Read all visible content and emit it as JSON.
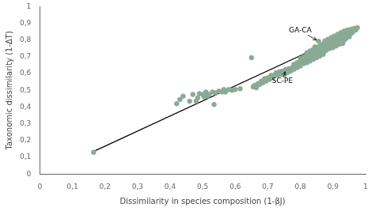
{
  "chart_data": {
    "type": "scatter",
    "xlabel": "Dissimilarity in species composition (1-βJ)",
    "ylabel": "Taxonomic dissimilarity (1-ΔT)",
    "xlim": [
      0,
      1.0
    ],
    "ylim": [
      0,
      1.0
    ],
    "xticks": [
      0,
      {
        "value": 0.1,
        "label": "0,1"
      },
      {
        "value": 0.2,
        "label": "0,2"
      },
      {
        "value": 0.3,
        "label": "0,3"
      },
      {
        "value": 0.4,
        "label": "0,4"
      },
      {
        "value": 0.5,
        "label": "0,5"
      },
      {
        "value": 0.6,
        "label": "0,6"
      },
      {
        "value": 0.7,
        "label": "0,7"
      },
      {
        "value": 0.8,
        "label": "0,8"
      },
      {
        "value": 0.9,
        "label": "0,9"
      },
      1
    ],
    "yticks": [
      0,
      {
        "value": 0.1,
        "label": "0,1"
      },
      {
        "value": 0.2,
        "label": "0,2"
      },
      {
        "value": 0.3,
        "label": "0,3"
      },
      {
        "value": 0.4,
        "label": "0,4"
      },
      {
        "value": 0.5,
        "label": "0,5"
      },
      {
        "value": 0.6,
        "label": "0,6"
      },
      {
        "value": 0.7,
        "label": "0,7"
      },
      {
        "value": 0.8,
        "label": "0,8"
      },
      {
        "value": 0.9,
        "label": "0,9"
      },
      1
    ],
    "grid": false,
    "series": [
      {
        "type": "scatter",
        "color": "#8aaa96",
        "x": [
          0.165,
          0.42,
          0.43,
          0.44,
          0.46,
          0.47,
          0.48,
          0.485,
          0.49,
          0.5,
          0.505,
          0.51,
          0.515,
          0.52,
          0.53,
          0.535,
          0.54,
          0.55,
          0.56,
          0.565,
          0.57,
          0.58,
          0.59,
          0.6,
          0.615,
          0.65,
          0.655,
          0.66,
          0.665,
          0.67,
          0.675,
          0.68,
          0.685,
          0.69,
          0.695,
          0.7,
          0.705,
          0.71,
          0.715,
          0.72,
          0.725,
          0.73,
          0.735,
          0.74,
          0.745,
          0.75,
          0.755,
          0.76,
          0.765,
          0.77,
          0.775,
          0.78,
          0.785,
          0.79,
          0.795,
          0.8,
          0.805,
          0.81,
          0.815,
          0.82,
          0.825,
          0.83,
          0.835,
          0.84,
          0.845,
          0.85,
          0.855,
          0.856,
          0.86,
          0.865,
          0.87,
          0.875,
          0.75,
          0.76,
          0.77,
          0.78,
          0.79,
          0.8,
          0.805,
          0.81,
          0.82,
          0.825,
          0.83,
          0.835,
          0.84,
          0.845,
          0.85,
          0.855,
          0.86,
          0.865,
          0.87,
          0.875,
          0.88,
          0.885,
          0.89,
          0.895,
          0.9,
          0.905,
          0.91,
          0.915,
          0.92,
          0.925,
          0.93,
          0.935,
          0.78,
          0.79,
          0.8,
          0.81,
          0.82,
          0.83,
          0.84,
          0.845,
          0.85,
          0.855,
          0.86,
          0.865,
          0.87,
          0.875,
          0.88,
          0.885,
          0.89,
          0.895,
          0.9,
          0.905,
          0.91,
          0.915,
          0.92,
          0.925,
          0.93,
          0.935,
          0.94,
          0.945,
          0.95,
          0.955,
          0.8,
          0.81,
          0.82,
          0.83,
          0.84,
          0.845,
          0.85,
          0.855,
          0.86,
          0.865,
          0.87,
          0.875,
          0.88,
          0.885,
          0.89,
          0.895,
          0.9,
          0.905,
          0.91,
          0.915,
          0.92,
          0.925,
          0.93,
          0.935,
          0.94,
          0.945,
          0.95,
          0.955,
          0.96,
          0.965,
          0.82,
          0.83,
          0.84,
          0.845,
          0.85,
          0.86,
          0.87,
          0.875,
          0.88,
          0.885,
          0.89,
          0.895,
          0.9,
          0.905,
          0.91,
          0.915,
          0.92,
          0.925,
          0.93,
          0.935,
          0.94,
          0.945,
          0.95,
          0.955,
          0.96,
          0.965,
          0.97,
          0.975
        ],
        "values": [
          0.13,
          0.42,
          0.445,
          0.465,
          0.435,
          0.475,
          0.435,
          0.455,
          0.48,
          0.475,
          0.46,
          0.49,
          0.465,
          0.475,
          0.49,
          0.415,
          0.485,
          0.495,
          0.49,
          0.505,
          0.49,
          0.505,
          0.5,
          0.505,
          0.51,
          0.695,
          0.52,
          0.53,
          0.515,
          0.54,
          0.535,
          0.555,
          0.545,
          0.57,
          0.555,
          0.575,
          0.565,
          0.59,
          0.575,
          0.59,
          0.605,
          0.59,
          0.61,
          0.595,
          0.615,
          0.6,
          0.625,
          0.61,
          0.63,
          0.615,
          0.635,
          0.625,
          0.645,
          0.635,
          0.655,
          0.645,
          0.665,
          0.66,
          0.675,
          0.665,
          0.685,
          0.675,
          0.695,
          0.685,
          0.705,
          0.695,
          0.715,
          0.793,
          0.705,
          0.725,
          0.715,
          0.735,
          0.59,
          0.605,
          0.62,
          0.64,
          0.65,
          0.66,
          0.68,
          0.67,
          0.68,
          0.695,
          0.705,
          0.715,
          0.7,
          0.72,
          0.71,
          0.725,
          0.72,
          0.74,
          0.73,
          0.75,
          0.74,
          0.76,
          0.75,
          0.77,
          0.755,
          0.775,
          0.765,
          0.785,
          0.775,
          0.795,
          0.78,
          0.8,
          0.655,
          0.665,
          0.675,
          0.685,
          0.695,
          0.705,
          0.715,
          0.73,
          0.725,
          0.74,
          0.735,
          0.755,
          0.745,
          0.765,
          0.755,
          0.775,
          0.765,
          0.785,
          0.775,
          0.795,
          0.785,
          0.805,
          0.795,
          0.815,
          0.8,
          0.82,
          0.81,
          0.83,
          0.82,
          0.84,
          0.69,
          0.7,
          0.71,
          0.72,
          0.73,
          0.745,
          0.74,
          0.758,
          0.75,
          0.77,
          0.76,
          0.78,
          0.77,
          0.79,
          0.78,
          0.8,
          0.79,
          0.81,
          0.8,
          0.82,
          0.81,
          0.83,
          0.82,
          0.84,
          0.825,
          0.845,
          0.835,
          0.855,
          0.845,
          0.86,
          0.725,
          0.735,
          0.745,
          0.76,
          0.755,
          0.765,
          0.775,
          0.795,
          0.785,
          0.805,
          0.795,
          0.815,
          0.805,
          0.825,
          0.815,
          0.835,
          0.825,
          0.845,
          0.835,
          0.855,
          0.84,
          0.86,
          0.85,
          0.865,
          0.855,
          0.87,
          0.86,
          0.875
        ]
      },
      {
        "type": "line",
        "color": "black",
        "x": [
          0.16,
          0.97
        ],
        "values": [
          0.13,
          0.86
        ]
      }
    ],
    "annotations": [
      {
        "text": "GA-CA",
        "xy": [
          0.856,
          0.793
        ],
        "xytext": [
          0.8,
          0.845
        ]
      },
      {
        "text": "SC-PE",
        "xy": [
          0.755,
          0.625
        ],
        "xytext": [
          0.745,
          0.545
        ]
      }
    ]
  }
}
